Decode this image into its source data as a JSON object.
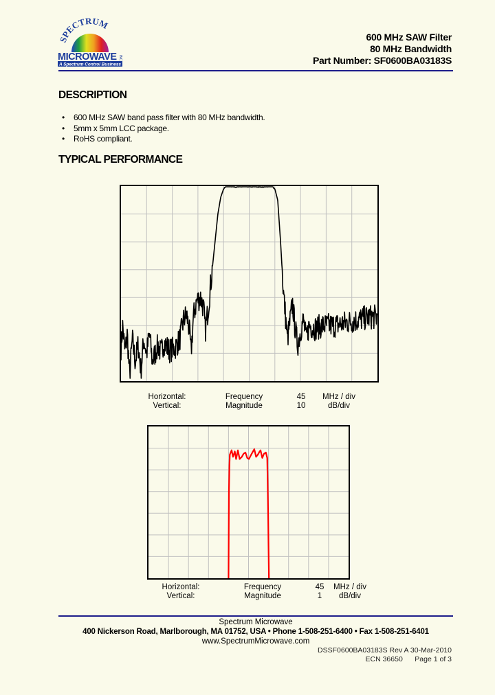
{
  "logo": {
    "top_text": "SPECTRUM",
    "main_text": "MICROWAVE",
    "suffix": "INC.",
    "tagline": "A Spectrum Control Business"
  },
  "header": {
    "line1": "600 MHz SAW Filter",
    "line2": "80 MHz Bandwidth",
    "line3": "Part Number: SF0600BA03183S"
  },
  "description": {
    "title": "DESCRIPTION",
    "bullets": [
      "600 MHz SAW band pass filter with 80 MHz bandwidth.",
      "5mm x 5mm LCC package.",
      "RoHS compliant."
    ]
  },
  "performance": {
    "title": "TYPICAL PERFORMANCE"
  },
  "chart_data": [
    {
      "type": "line",
      "color": "#000000",
      "grid": true,
      "xlim": [
        375,
        825
      ],
      "ylim": [
        -70,
        0
      ],
      "x_divisions": 10,
      "y_divisions": 7,
      "scale": {
        "h_label": "Horizontal:",
        "h_name": "Frequency",
        "h_value": "45",
        "h_unit": "MHz / div",
        "v_label": "Vertical:",
        "v_name": "Magnitude",
        "v_value": "10",
        "v_unit": "dB/div"
      },
      "points": [
        [
          375,
          -58
        ],
        [
          378,
          -50
        ],
        [
          382,
          -60
        ],
        [
          386,
          -53
        ],
        [
          390,
          -68
        ],
        [
          395,
          -55
        ],
        [
          400,
          -63
        ],
        [
          405,
          -57
        ],
        [
          410,
          -66
        ],
        [
          415,
          -55
        ],
        [
          420,
          -60
        ],
        [
          425,
          -53
        ],
        [
          430,
          -63
        ],
        [
          440,
          -57
        ],
        [
          445,
          -60
        ],
        [
          450,
          -56
        ],
        [
          460,
          -59
        ],
        [
          470,
          -58
        ],
        [
          478,
          -55
        ],
        [
          485,
          -48
        ],
        [
          490,
          -46
        ],
        [
          495,
          -52
        ],
        [
          498,
          -60
        ],
        [
          502,
          -47
        ],
        [
          508,
          -41
        ],
        [
          515,
          -40
        ],
        [
          520,
          -44
        ],
        [
          523,
          -52
        ],
        [
          528,
          -44
        ],
        [
          535,
          -30
        ],
        [
          540,
          -20
        ],
        [
          545,
          -10
        ],
        [
          550,
          -4
        ],
        [
          555,
          -1
        ],
        [
          560,
          0
        ],
        [
          580,
          -0.3
        ],
        [
          600,
          -0.2
        ],
        [
          620,
          -0.3
        ],
        [
          640,
          0
        ],
        [
          645,
          -1
        ],
        [
          650,
          -5
        ],
        [
          655,
          -20
        ],
        [
          660,
          -38
        ],
        [
          663,
          -45
        ],
        [
          667,
          -55
        ],
        [
          672,
          -48
        ],
        [
          676,
          -42
        ],
        [
          680,
          -50
        ],
        [
          685,
          -57
        ],
        [
          690,
          -52
        ],
        [
          695,
          -48
        ],
        [
          700,
          -55
        ],
        [
          705,
          -50
        ],
        [
          715,
          -51
        ],
        [
          730,
          -50
        ],
        [
          750,
          -50
        ],
        [
          770,
          -49
        ],
        [
          790,
          -48
        ],
        [
          810,
          -47
        ],
        [
          825,
          -47
        ]
      ]
    },
    {
      "type": "line",
      "color": "#ff0000",
      "grid": true,
      "xlim": [
        375,
        825
      ],
      "ylim": [
        -7,
        0
      ],
      "x_divisions": 10,
      "y_divisions": 7,
      "scale": {
        "h_label": "Horizontal:",
        "h_name": "Frequency",
        "h_value": "45",
        "h_unit": "MHz / div",
        "v_label": "Vertical:",
        "v_name": "Magnitude",
        "v_value": "1",
        "v_unit": "dB/div"
      },
      "points": [
        [
          555,
          -7
        ],
        [
          555.5,
          -5
        ],
        [
          556,
          -3
        ],
        [
          557,
          -1.8
        ],
        [
          558,
          -1.3
        ],
        [
          562,
          -1.1
        ],
        [
          565,
          -1.4
        ],
        [
          569,
          -1.15
        ],
        [
          572,
          -1.5
        ],
        [
          576,
          -1.1
        ],
        [
          580,
          -1.5
        ],
        [
          585,
          -1.4
        ],
        [
          589,
          -1.25
        ],
        [
          593,
          -1.2
        ],
        [
          597,
          -1.45
        ],
        [
          601,
          -1.5
        ],
        [
          606,
          -1.3
        ],
        [
          610,
          -1.15
        ],
        [
          613,
          -1.05
        ],
        [
          617,
          -1.4
        ],
        [
          621,
          -1.3
        ],
        [
          625,
          -1.15
        ],
        [
          627,
          -1.1
        ],
        [
          631,
          -1.45
        ],
        [
          635,
          -1.25
        ],
        [
          639,
          -1.2
        ],
        [
          642,
          -1.45
        ],
        [
          643,
          -2.5
        ],
        [
          644,
          -4
        ],
        [
          645,
          -5.6
        ],
        [
          646,
          -7
        ]
      ]
    }
  ],
  "footer": {
    "company": "Spectrum Microwave",
    "address": "400 Nickerson Road, Marlborough, MA 01752, USA  •  Phone 1-508-251-6400  •  Fax 1-508-251-6401",
    "website": "www.SpectrumMicrowave.com",
    "doc_line": "DSSF0600BA03183S   Rev A  30-Mar-2010",
    "ecn_line": "ECN 36650      Page 1 of 3"
  },
  "colors": {
    "background": "#fafaea",
    "rule": "#1c1c8a",
    "grid": "#c0c0c0"
  }
}
